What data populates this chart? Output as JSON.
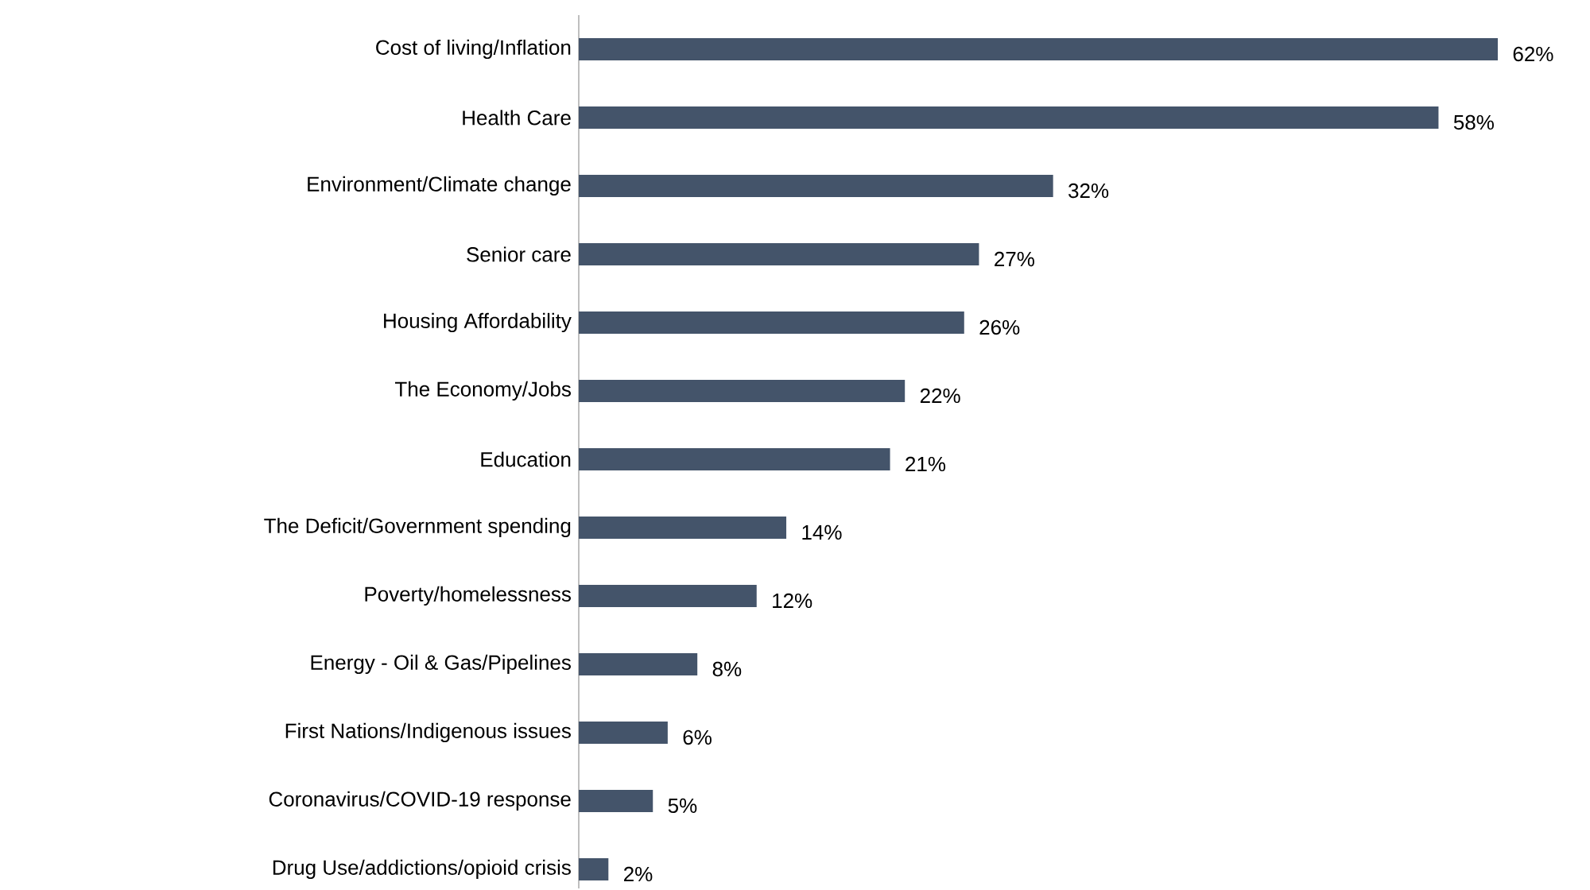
{
  "chart_data": {
    "type": "bar",
    "orientation": "horizontal",
    "color": "#44546a",
    "data_labels": true,
    "categories": [
      "Cost of living/Inflation",
      "Health Care",
      "Environment/Climate change",
      "Senior care",
      "Housing Affordability",
      "The Economy/Jobs",
      "Education",
      "The Deficit/Government spending",
      "Poverty/homelessness",
      "Energy - Oil & Gas/Pipelines",
      "First Nations/Indigenous issues",
      "Coronavirus/COVID-19 response",
      "Drug Use/addictions/opioid crisis"
    ],
    "values": [
      62,
      58,
      32,
      27,
      26,
      22,
      21,
      14,
      12,
      8,
      6,
      5,
      2
    ],
    "value_labels": [
      "62%",
      "58%",
      "32%",
      "27%",
      "26%",
      "22%",
      "21%",
      "14%",
      "12%",
      "8%",
      "6%",
      "5%",
      "2%"
    ]
  }
}
